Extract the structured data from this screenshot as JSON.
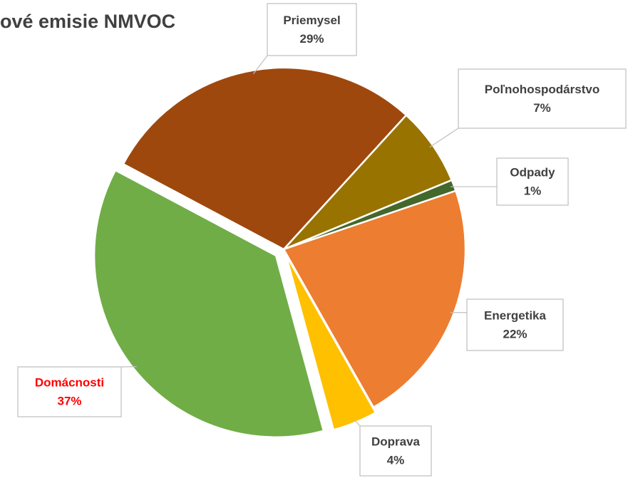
{
  "chart_data": {
    "type": "pie",
    "title": "ové emisie NMVOC",
    "categories": [
      "Priemysel",
      "Poľnohospodárstvo",
      "Odpady",
      "Energetika",
      "Doprava",
      "Domácnosti"
    ],
    "values": [
      29,
      7,
      1,
      22,
      4,
      37
    ],
    "value_labels": [
      "29%",
      "7%",
      "1%",
      "22%",
      "4%",
      "37%"
    ],
    "colors": [
      "#9e480e",
      "#997300",
      "#43682b",
      "#ed7d31",
      "#ffc000",
      "#70ad47"
    ],
    "label_colors": [
      "#404040",
      "#404040",
      "#404040",
      "#404040",
      "#404040",
      "#ff0000"
    ],
    "explode": [
      0,
      0,
      0,
      0,
      8,
      14
    ]
  }
}
